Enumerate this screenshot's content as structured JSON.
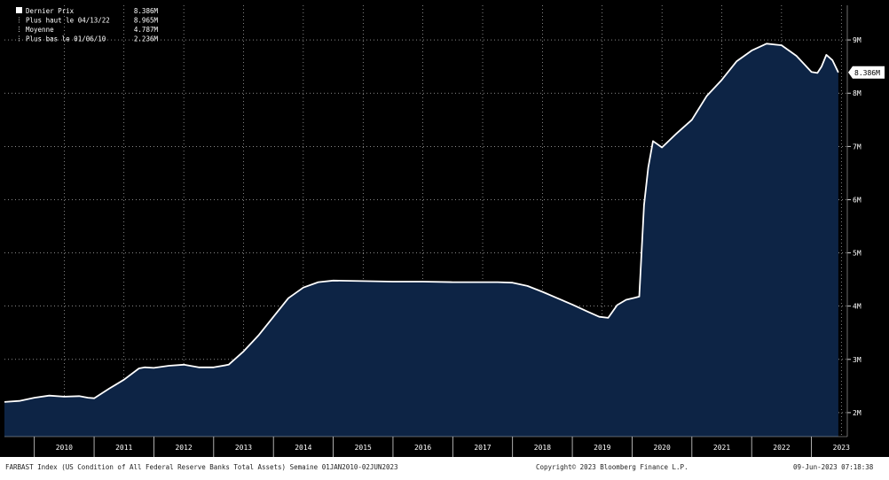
{
  "chart_data": {
    "type": "area",
    "title": "",
    "xlabel": "",
    "ylabel": "",
    "x_tick_labels": [
      "2010",
      "2011",
      "2012",
      "2013",
      "2014",
      "2015",
      "2016",
      "2017",
      "2018",
      "2019",
      "2020",
      "2021",
      "2022",
      "2023"
    ],
    "y_tick_labels": [
      "2M",
      "3M",
      "4M",
      "5M",
      "6M",
      "7M",
      "8M",
      "9M"
    ],
    "y_ticks": [
      2,
      3,
      4,
      5,
      6,
      7,
      8,
      9
    ],
    "ylim": [
      1.55,
      9.65
    ],
    "xlim": [
      2009.5,
      2023.6
    ],
    "grid": true,
    "legend_position": "top-left",
    "legend": [
      {
        "label": "Dernier Prix",
        "value": "8.386M"
      },
      {
        "label": "Plus haut le 04/13/22",
        "value": "8.965M"
      },
      {
        "label": "Moyenne",
        "value": "4.787M"
      },
      {
        "label": "Plus bas le 01/06/10",
        "value": "2.236M"
      }
    ],
    "last_value_label": "8.386M",
    "colors": {
      "background": "#000000",
      "fill": "#0d2445",
      "line": "#ffffff",
      "grid": "#ffffff",
      "tick_text": "#ffffff"
    },
    "series": [
      {
        "x": [
          2009.5,
          2009.75,
          2010.0,
          2010.25,
          2010.5,
          2010.75,
          2010.9,
          2011.0,
          2011.25,
          2011.5,
          2011.75,
          2011.85,
          2012.0,
          2012.25,
          2012.5,
          2012.75,
          2013.0,
          2013.25,
          2013.5,
          2013.75,
          2014.0,
          2014.25,
          2014.5,
          2014.75,
          2015.0,
          2015.5,
          2016.0,
          2016.5,
          2017.0,
          2017.5,
          2017.75,
          2018.0,
          2018.25,
          2018.5,
          2018.75,
          2019.0,
          2019.25,
          2019.45,
          2019.6,
          2019.75,
          2019.9,
          2020.05,
          2020.12,
          2020.2,
          2020.27,
          2020.35,
          2020.5,
          2020.75,
          2021.0,
          2021.25,
          2021.5,
          2021.75,
          2022.0,
          2022.25,
          2022.5,
          2022.75,
          2023.0,
          2023.1,
          2023.17,
          2023.25,
          2023.35,
          2023.45
        ],
        "y": [
          2.2,
          2.22,
          2.28,
          2.32,
          2.3,
          2.31,
          2.28,
          2.27,
          2.45,
          2.62,
          2.83,
          2.85,
          2.84,
          2.88,
          2.9,
          2.85,
          2.85,
          2.9,
          3.15,
          3.45,
          3.8,
          4.15,
          4.35,
          4.45,
          4.48,
          4.47,
          4.46,
          4.46,
          4.45,
          4.45,
          4.45,
          4.44,
          4.38,
          4.27,
          4.15,
          4.03,
          3.9,
          3.8,
          3.78,
          4.02,
          4.12,
          4.16,
          4.18,
          5.9,
          6.6,
          7.1,
          6.98,
          7.25,
          7.5,
          7.95,
          8.25,
          8.6,
          8.8,
          8.93,
          8.9,
          8.7,
          8.4,
          8.38,
          8.5,
          8.72,
          8.62,
          8.39
        ]
      }
    ]
  },
  "footer": {
    "left": "FARBAST Index (US Condition of All Federal Reserve Banks Total Assets)  Semaine 01JAN2010-02JUN2023",
    "center": "Copyright© 2023 Bloomberg Finance L.P.",
    "right": "09-Jun-2023 07:18:38"
  }
}
